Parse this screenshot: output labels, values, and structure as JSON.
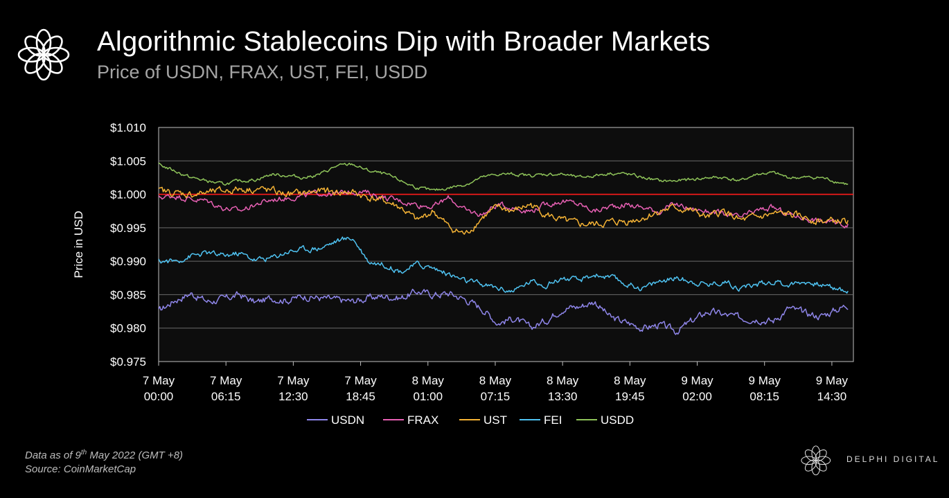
{
  "header": {
    "title": "Algorithmic Stablecoins Dip with Broader Markets",
    "subtitle": "Price of USDN, FRAX, UST, FEI, USDD"
  },
  "footer": {
    "data_note_prefix": "Data as of 9",
    "data_note_sup": "th",
    "data_note_suffix": " May 2022 (GMT +8)",
    "source": "Source: CoinMarketCap",
    "brand": "DELPHI DIGITAL"
  },
  "chart_data": {
    "type": "line",
    "ylabel": "Price in USD",
    "ylim": [
      0.975,
      1.01
    ],
    "yticks": [
      "$1.010",
      "$1.005",
      "$1.000",
      "$0.995",
      "$0.990",
      "$0.985",
      "$0.980",
      "$0.975"
    ],
    "ytick_values": [
      1.01,
      1.005,
      1.0,
      0.995,
      0.99,
      0.985,
      0.98,
      0.975
    ],
    "xticks": [
      [
        "7 May",
        "00:00"
      ],
      [
        "7 May",
        "06:15"
      ],
      [
        "7 May",
        "12:30"
      ],
      [
        "7 May",
        "18:45"
      ],
      [
        "8 May",
        "01:00"
      ],
      [
        "8 May",
        "07:15"
      ],
      [
        "8 May",
        "13:30"
      ],
      [
        "8 May",
        "19:45"
      ],
      [
        "9 May",
        "02:00"
      ],
      [
        "9 May",
        "08:15"
      ],
      [
        "9 May",
        "14:30"
      ]
    ],
    "x_hours": [
      0,
      1.5,
      3,
      4.5,
      6,
      7.5,
      9,
      10.5,
      12,
      13.5,
      15,
      16.5,
      18,
      19.5,
      21,
      22.5,
      24,
      25.5,
      27,
      28.5,
      30,
      31.5,
      33,
      34.5,
      36,
      37.5,
      39,
      40.5,
      42,
      43.5,
      45,
      46.5,
      48,
      49.5,
      51,
      52.5,
      54,
      55.5,
      57,
      58.5,
      60,
      61.5,
      64
    ],
    "reference_line": {
      "value": 1.0,
      "color": "#ff1a1a"
    },
    "grid": true,
    "legend_position": "bottom",
    "series": [
      {
        "name": "USDN",
        "color": "#8f86ea",
        "values": [
          0.9825,
          0.9842,
          0.9852,
          0.984,
          0.9843,
          0.985,
          0.9838,
          0.9845,
          0.9842,
          0.9848,
          0.9845,
          0.9842,
          0.984,
          0.9845,
          0.9848,
          0.9845,
          0.9855,
          0.985,
          0.9852,
          0.9843,
          0.983,
          0.9808,
          0.9815,
          0.98,
          0.9812,
          0.983,
          0.9832,
          0.984,
          0.9815,
          0.9808,
          0.98,
          0.9805,
          0.9795,
          0.981,
          0.9825,
          0.982,
          0.9815,
          0.9815,
          0.981,
          0.983,
          0.9822,
          0.9818,
          0.9835
        ]
      },
      {
        "name": "FRAX",
        "color": "#e860b4",
        "values": [
          0.9995,
          0.9998,
          0.9993,
          0.999,
          0.998,
          0.9975,
          0.9985,
          0.9992,
          0.9995,
          0.9998,
          1.0002,
          1.0,
          1.0005,
          1.0002,
          0.9995,
          0.999,
          0.9985,
          0.9982,
          0.9995,
          0.9975,
          0.997,
          0.9985,
          0.998,
          0.9975,
          0.9985,
          0.999,
          0.9985,
          0.9975,
          0.9982,
          0.9985,
          0.998,
          0.9975,
          0.9985,
          0.9978,
          0.9975,
          0.997,
          0.9965,
          0.9975,
          0.998,
          0.997,
          0.9965,
          0.996,
          0.9955
        ]
      },
      {
        "name": "UST",
        "color": "#f5b335",
        "values": [
          1.0005,
          1.0002,
          1.0,
          1.0002,
          1.0005,
          1.0008,
          1.0008,
          1.0005,
          1.0,
          1.0002,
          1.0005,
          1.0003,
          1.0003,
          0.9995,
          0.999,
          0.998,
          0.996,
          0.9975,
          0.995,
          0.994,
          0.9965,
          0.998,
          0.9975,
          0.9985,
          0.997,
          0.996,
          0.9955,
          0.9955,
          0.9958,
          0.996,
          0.9965,
          0.9975,
          0.998,
          0.9975,
          0.9965,
          0.9975,
          0.996,
          0.9965,
          0.997,
          0.997,
          0.9965,
          0.996,
          0.996
        ]
      },
      {
        "name": "FEI",
        "color": "#4fc3f2",
        "values": [
          0.99,
          0.99,
          0.9908,
          0.9912,
          0.9908,
          0.9912,
          0.9902,
          0.9905,
          0.9915,
          0.9918,
          0.992,
          0.993,
          0.9935,
          0.99,
          0.9895,
          0.9885,
          0.9895,
          0.989,
          0.988,
          0.987,
          0.9865,
          0.986,
          0.9855,
          0.987,
          0.9865,
          0.9875,
          0.987,
          0.988,
          0.9875,
          0.9865,
          0.986,
          0.987,
          0.9875,
          0.987,
          0.9865,
          0.987,
          0.986,
          0.9865,
          0.987,
          0.9865,
          0.987,
          0.9865,
          0.9855
        ]
      },
      {
        "name": "USDD",
        "color": "#8fc45a",
        "values": [
          1.0045,
          1.0035,
          1.0025,
          1.002,
          1.0015,
          1.002,
          1.0022,
          1.003,
          1.0028,
          1.0025,
          1.003,
          1.0042,
          1.0045,
          1.0035,
          1.003,
          1.002,
          1.001,
          1.0005,
          1.001,
          1.0015,
          1.0025,
          1.003,
          1.003,
          1.0028,
          1.003,
          1.003,
          1.0025,
          1.0028,
          1.0032,
          1.003,
          1.0025,
          1.002,
          1.002,
          1.0022,
          1.0025,
          1.0025,
          1.002,
          1.003,
          1.0032,
          1.0025,
          1.0025,
          1.0025,
          1.0015
        ]
      }
    ]
  }
}
